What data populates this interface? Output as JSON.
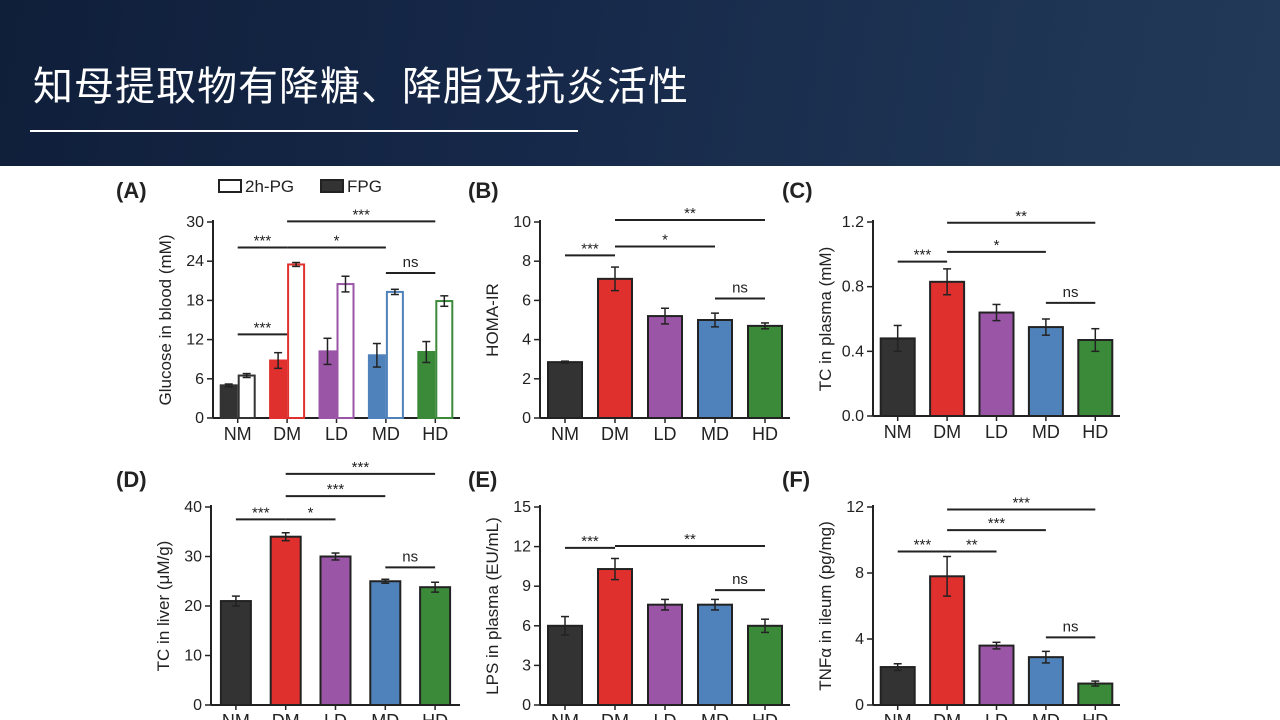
{
  "slide": {
    "title": "知母提取物有降糖、降脂及抗炎活性"
  },
  "colors": {
    "NM": "#333333",
    "DM": "#e0302e",
    "LD": "#9b55a7",
    "MD": "#4f82ba",
    "HD": "#3b8a3a"
  },
  "chart_data": [
    {
      "panel": "(A)",
      "type": "bar",
      "categories": [
        "NM",
        "DM",
        "LD",
        "MD",
        "HD"
      ],
      "ylabel": "Glucose in blood (mM)",
      "ylim": [
        0,
        30
      ],
      "yticks": [
        "0",
        "6",
        "12",
        "18",
        "24",
        "30"
      ],
      "legend": [
        "2h-PG",
        "FPG"
      ],
      "series": [
        {
          "name": "FPG",
          "fill": "solid",
          "values": [
            5.0,
            8.8,
            10.2,
            9.6,
            10.1
          ],
          "errors": [
            0.2,
            1.2,
            2.0,
            1.8,
            1.6
          ]
        },
        {
          "name": "2h-PG",
          "fill": "open",
          "values": [
            6.5,
            23.5,
            20.5,
            19.3,
            17.9
          ],
          "errors": [
            0.3,
            0.3,
            1.2,
            0.4,
            0.8
          ]
        }
      ],
      "significance": [
        {
          "from": "NM",
          "to": "DM",
          "text": "***",
          "y": 12.8
        },
        {
          "from": "NM",
          "to": "DM",
          "text": "***",
          "y": 26.1
        },
        {
          "from": "DM",
          "to": "MD",
          "text": "*",
          "y": 26.1
        },
        {
          "from": "DM",
          "to": "HD",
          "text": "***",
          "y": 30.1
        },
        {
          "from": "MD",
          "to": "HD",
          "text": "ns",
          "y": 22.2
        }
      ]
    },
    {
      "panel": "(B)",
      "type": "bar",
      "categories": [
        "NM",
        "DM",
        "LD",
        "MD",
        "HD"
      ],
      "ylabel": "HOMA-IR",
      "ylim": [
        0,
        10
      ],
      "yticks": [
        "0",
        "2",
        "4",
        "6",
        "8",
        "10"
      ],
      "values": [
        2.85,
        7.1,
        5.2,
        5.0,
        4.7
      ],
      "errors": [
        0.05,
        0.6,
        0.4,
        0.35,
        0.15
      ],
      "significance": [
        {
          "from": "NM",
          "to": "DM",
          "text": "***",
          "y": 8.3
        },
        {
          "from": "DM",
          "to": "MD",
          "text": "*",
          "y": 8.75
        },
        {
          "from": "DM",
          "to": "HD",
          "text": "**",
          "y": 10.1
        },
        {
          "from": "MD",
          "to": "HD",
          "text": "ns",
          "y": 6.1
        }
      ]
    },
    {
      "panel": "(C)",
      "type": "bar",
      "categories": [
        "NM",
        "DM",
        "LD",
        "MD",
        "HD"
      ],
      "ylabel": "TC in plasma (mM)",
      "ylim": [
        0,
        1.2
      ],
      "yticks": [
        "0.0",
        "0.4",
        "0.8",
        "1.2"
      ],
      "values": [
        0.48,
        0.83,
        0.64,
        0.55,
        0.47
      ],
      "errors": [
        0.08,
        0.08,
        0.05,
        0.05,
        0.07
      ],
      "significance": [
        {
          "from": "NM",
          "to": "DM",
          "text": "***",
          "y": 0.955
        },
        {
          "from": "DM",
          "to": "MD",
          "text": "*",
          "y": 1.015
        },
        {
          "from": "DM",
          "to": "HD",
          "text": "**",
          "y": 1.195
        },
        {
          "from": "MD",
          "to": "HD",
          "text": "ns",
          "y": 0.7
        }
      ]
    },
    {
      "panel": "(D)",
      "type": "bar",
      "categories": [
        "NM",
        "DM",
        "LD",
        "MD",
        "HD"
      ],
      "ylabel": "TC in liver (μM/g)",
      "ylim": [
        0,
        40
      ],
      "yticks": [
        "0",
        "10",
        "20",
        "30",
        "40"
      ],
      "values": [
        21.0,
        34.0,
        30.0,
        25.0,
        23.8
      ],
      "errors": [
        1.0,
        0.8,
        0.7,
        0.4,
        1.0
      ],
      "significance": [
        {
          "from": "NM",
          "to": "DM",
          "text": "***",
          "y": 37.5
        },
        {
          "from": "DM",
          "to": "LD",
          "text": "*",
          "y": 37.5
        },
        {
          "from": "DM",
          "to": "MD",
          "text": "***",
          "y": 42.2
        },
        {
          "from": "DM",
          "to": "HD",
          "text": "***",
          "y": 46.7
        },
        {
          "from": "MD",
          "to": "HD",
          "text": "ns",
          "y": 27.8
        }
      ]
    },
    {
      "panel": "(E)",
      "type": "bar",
      "categories": [
        "NM",
        "DM",
        "LD",
        "MD",
        "HD"
      ],
      "ylabel": "LPS in plasma (EU/mL)",
      "ylim": [
        0,
        15
      ],
      "yticks": [
        "0",
        "3",
        "6",
        "9",
        "12",
        "15"
      ],
      "values": [
        6.0,
        10.3,
        7.6,
        7.6,
        6.0
      ],
      "errors": [
        0.7,
        0.8,
        0.4,
        0.4,
        0.5
      ],
      "significance": [
        {
          "from": "NM",
          "to": "DM",
          "text": "***",
          "y": 11.9
        },
        {
          "from": "DM",
          "to": "HD",
          "text": "**",
          "y": 12.05
        },
        {
          "from": "MD",
          "to": "HD",
          "text": "ns",
          "y": 8.7
        }
      ]
    },
    {
      "panel": "(F)",
      "type": "bar",
      "categories": [
        "NM",
        "DM",
        "LD",
        "MD",
        "HD"
      ],
      "ylabel": "TNFα in ileum (pg/mg)",
      "ylim": [
        0,
        12
      ],
      "yticks": [
        "0",
        "4",
        "8",
        "12"
      ],
      "values": [
        2.3,
        7.8,
        3.6,
        2.9,
        1.3
      ],
      "errors": [
        0.2,
        1.2,
        0.2,
        0.35,
        0.15
      ],
      "significance": [
        {
          "from": "NM",
          "to": "DM",
          "text": "***",
          "y": 9.3
        },
        {
          "from": "DM",
          "to": "LD",
          "text": "**",
          "y": 9.3
        },
        {
          "from": "DM",
          "to": "MD",
          "text": "***",
          "y": 10.6
        },
        {
          "from": "DM",
          "to": "HD",
          "text": "***",
          "y": 11.85
        },
        {
          "from": "MD",
          "to": "HD",
          "text": "ns",
          "y": 4.1
        }
      ]
    }
  ]
}
